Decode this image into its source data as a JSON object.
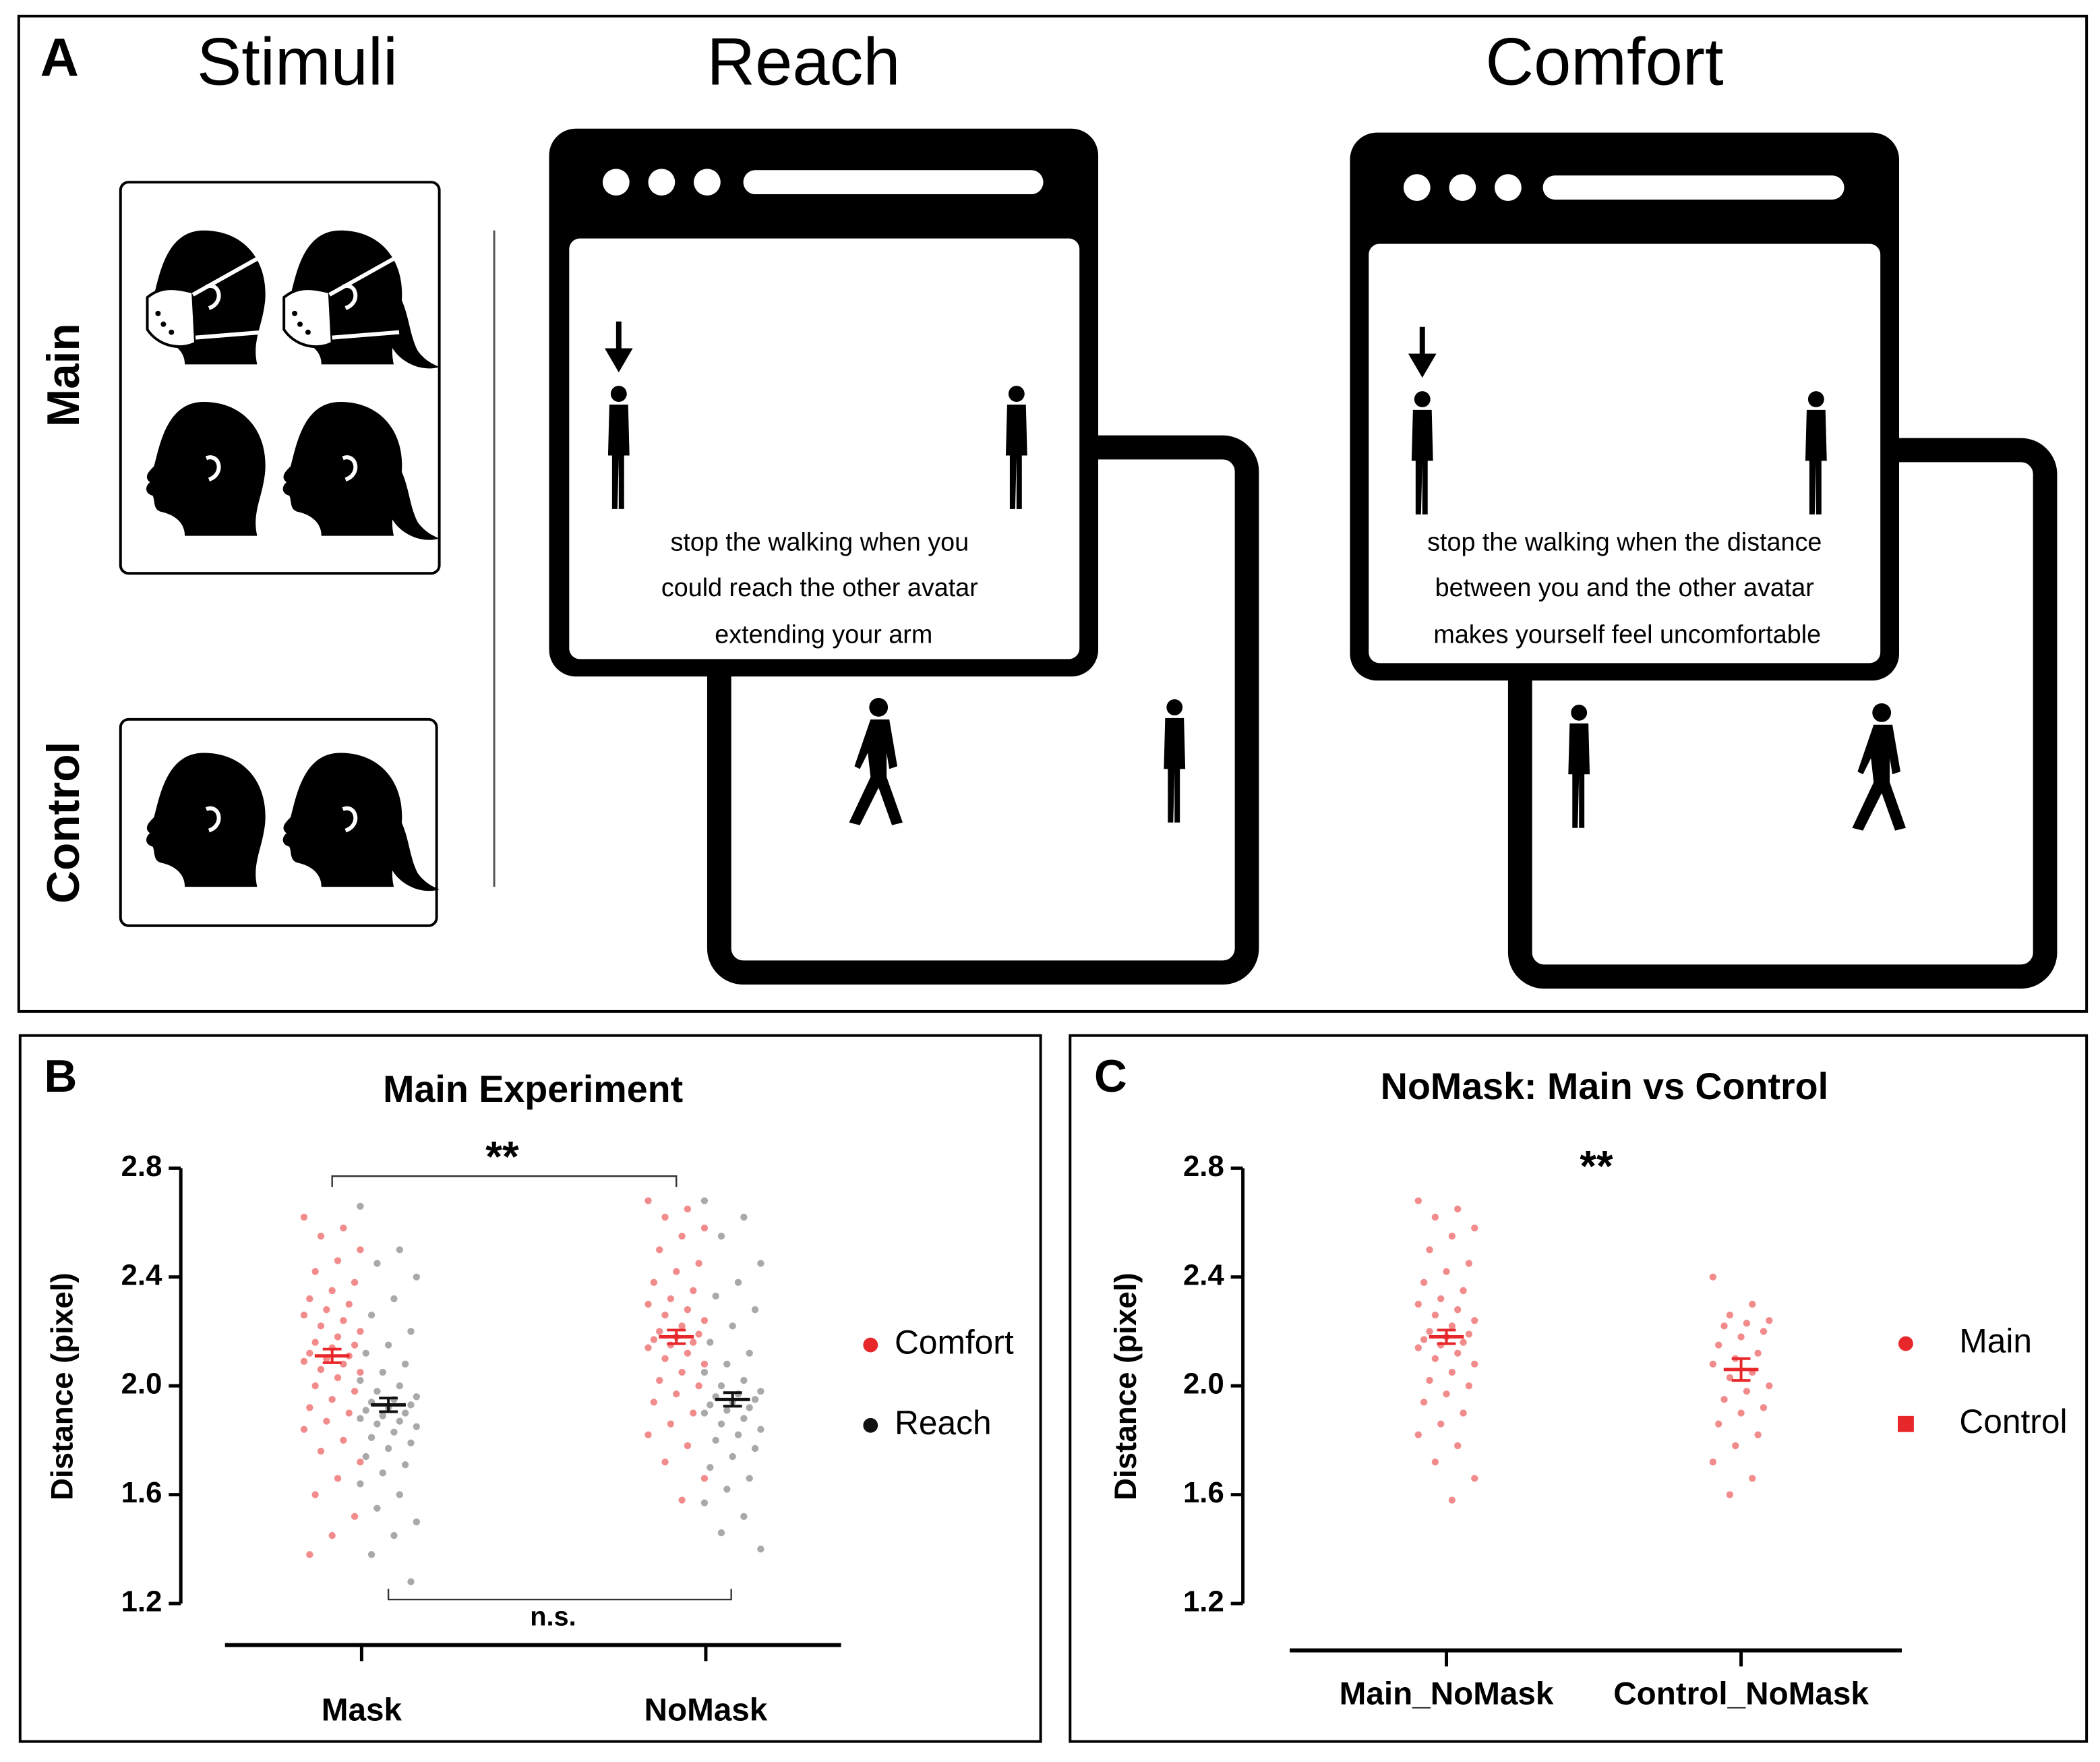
{
  "panel_a": {
    "label": "A",
    "stimuli_title": "Stimuli",
    "reach_title": "Reach",
    "comfort_title": "Comfort",
    "row_main": "Main",
    "row_control": "Control",
    "reach_instruction": [
      "stop the walking when you",
      "could reach the other avatar",
      "extending your arm"
    ],
    "comfort_instruction": [
      "stop the walking when the distance",
      "between you and the other avatar",
      "makes yourself feel uncomfortable"
    ]
  },
  "chart_data": [
    {
      "type": "strip",
      "panel_label": "B",
      "title": "Main Experiment",
      "y_label": "Distance (pixel)",
      "categories": [
        "Mask",
        "NoMask"
      ],
      "ylim": [
        1.2,
        2.8
      ],
      "yticks": [
        1.2,
        1.6,
        {
          "value": 2,
          "label": "2.0"
        },
        2.4,
        2.8
      ],
      "annotations": [
        "**",
        "n.s."
      ],
      "series": [
        {
          "name": "Comfort",
          "color": "#f28b8b",
          "mean_color": "#e8272b",
          "marker": "circle",
          "values": [
            [
              2.62,
              2.58,
              2.55,
              2.5,
              2.46,
              2.42,
              2.38,
              2.35,
              2.32,
              2.3,
              2.28,
              2.26,
              2.24,
              2.22,
              2.2,
              2.18,
              2.16,
              2.15,
              2.14,
              2.12,
              2.11,
              2.1,
              2.09,
              2.08,
              2.06,
              2.05,
              2.03,
              2.0,
              1.98,
              1.95,
              1.92,
              1.9,
              1.87,
              1.84,
              1.8,
              1.76,
              1.72,
              1.66,
              1.6,
              1.52,
              1.45,
              1.38
            ],
            [
              2.68,
              2.65,
              2.62,
              2.58,
              2.55,
              2.5,
              2.45,
              2.42,
              2.38,
              2.35,
              2.32,
              2.3,
              2.28,
              2.26,
              2.24,
              2.22,
              2.2,
              2.19,
              2.18,
              2.17,
              2.16,
              2.15,
              2.14,
              2.12,
              2.1,
              2.08,
              2.05,
              2.02,
              2.0,
              1.97,
              1.94,
              1.9,
              1.86,
              1.82,
              1.78,
              1.72,
              1.66,
              1.58
            ]
          ],
          "means": [
            2.11,
            2.18
          ],
          "errors": [
            0.025,
            0.025
          ]
        },
        {
          "name": "Reach",
          "color": "#a9a9a9",
          "mean_color": "#111111",
          "marker": "circle",
          "values": [
            [
              2.66,
              2.5,
              2.45,
              2.4,
              2.32,
              2.26,
              2.2,
              2.15,
              2.12,
              2.08,
              2.05,
              2.02,
              2.0,
              1.98,
              1.96,
              1.95,
              1.94,
              1.93,
              1.92,
              1.91,
              1.9,
              1.89,
              1.88,
              1.87,
              1.86,
              1.85,
              1.83,
              1.81,
              1.79,
              1.77,
              1.74,
              1.71,
              1.68,
              1.64,
              1.6,
              1.55,
              1.5,
              1.45,
              1.38,
              1.28
            ],
            [
              2.68,
              2.62,
              2.55,
              2.45,
              2.38,
              2.33,
              2.28,
              2.22,
              2.16,
              2.12,
              2.08,
              2.05,
              2.02,
              2.0,
              1.98,
              1.97,
              1.96,
              1.95,
              1.94,
              1.93,
              1.92,
              1.91,
              1.9,
              1.88,
              1.86,
              1.84,
              1.82,
              1.8,
              1.77,
              1.74,
              1.7,
              1.66,
              1.62,
              1.57,
              1.52,
              1.46,
              1.4
            ]
          ],
          "means": [
            1.93,
            1.95
          ],
          "errors": [
            0.025,
            0.025
          ]
        }
      ]
    },
    {
      "type": "strip",
      "panel_label": "C",
      "title": "NoMask: Main vs Control",
      "y_label": "Distance (pixel)",
      "categories": [
        "Main_NoMask",
        "Control_NoMask"
      ],
      "ylim": [
        1.2,
        2.8
      ],
      "yticks": [
        1.2,
        1.6,
        {
          "value": 2,
          "label": "2.0"
        },
        2.4,
        2.8
      ],
      "annotations": [
        "**"
      ],
      "series": [
        {
          "name": "Main",
          "color": "#f28b8b",
          "mean_color": "#e8272b",
          "marker": "circle",
          "values": [
            [
              2.68,
              2.65,
              2.62,
              2.58,
              2.55,
              2.5,
              2.45,
              2.42,
              2.38,
              2.35,
              2.32,
              2.3,
              2.28,
              2.26,
              2.24,
              2.22,
              2.2,
              2.19,
              2.18,
              2.17,
              2.16,
              2.15,
              2.14,
              2.12,
              2.1,
              2.08,
              2.05,
              2.02,
              2.0,
              1.97,
              1.94,
              1.9,
              1.86,
              1.82,
              1.78,
              1.72,
              1.66,
              1.58
            ],
            null
          ],
          "means": [
            2.18,
            null
          ],
          "errors": [
            0.025,
            null
          ]
        },
        {
          "name": "Control",
          "color": "#f28b8b",
          "mean_color": "#e8272b",
          "marker": "square",
          "values": [
            null,
            [
              2.4,
              2.3,
              2.26,
              2.24,
              2.23,
              2.22,
              2.2,
              2.18,
              2.15,
              2.12,
              2.1,
              2.08,
              2.05,
              2.03,
              2.0,
              1.98,
              1.95,
              1.92,
              1.9,
              1.86,
              1.82,
              1.78,
              1.72,
              1.66,
              1.6
            ]
          ],
          "means": [
            null,
            2.06
          ],
          "errors": [
            null,
            0.04
          ]
        }
      ]
    }
  ]
}
